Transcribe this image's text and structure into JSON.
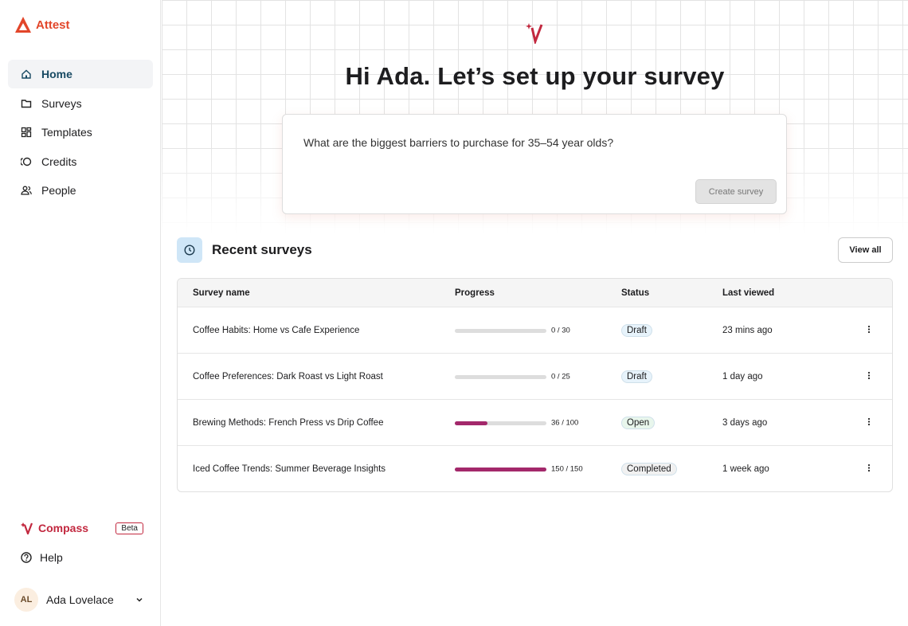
{
  "sidebar": {
    "brand": "Attest",
    "nav": [
      "Home",
      "Surveys",
      "Templates",
      "Credits",
      "People"
    ],
    "compass": {
      "label": "Compass",
      "badge": "Beta"
    },
    "help": "Help",
    "user": {
      "initials": "AL",
      "name": "Ada Lovelace"
    }
  },
  "main": {
    "heading": "Hi Ada. Let’s set up your survey",
    "prompt": "What are the biggest barriers to purchase for 35–54 year olds?",
    "create_button": "Create survey",
    "recent": {
      "title": "Recent surveys",
      "view_all": "View all",
      "columns": [
        "Survey name",
        "Progress",
        "Status",
        "Last viewed"
      ],
      "rows": [
        {
          "name": "Coffee Habits: Home vs Cafe Experience",
          "progress": {
            "value": 0,
            "total": 30,
            "label": "0 / 30"
          },
          "status": {
            "label": "Draft",
            "color": "#e7f3fb"
          },
          "last_viewed": "23 mins ago"
        },
        {
          "name": "Coffee Preferences: Dark Roast vs Light Roast",
          "progress": {
            "value": 0,
            "total": 25,
            "label": "0 / 25"
          },
          "status": {
            "label": "Draft",
            "color": "#e7f3fb"
          },
          "last_viewed": "1 day ago"
        },
        {
          "name": "Brewing Methods: French Press vs Drip Coffee",
          "progress": {
            "value": 36,
            "total": 100,
            "label": "36 / 100"
          },
          "status": {
            "label": "Open",
            "color": "#e8f6ec"
          },
          "last_viewed": "3 days ago"
        },
        {
          "name": "Iced Coffee Trends: Summer Beverage Insights",
          "progress": {
            "value": 150,
            "total": 150,
            "label": "150 / 150"
          },
          "status": {
            "label": "Completed",
            "color": "#f1f1f1"
          },
          "last_viewed": "1 week ago"
        }
      ]
    }
  }
}
